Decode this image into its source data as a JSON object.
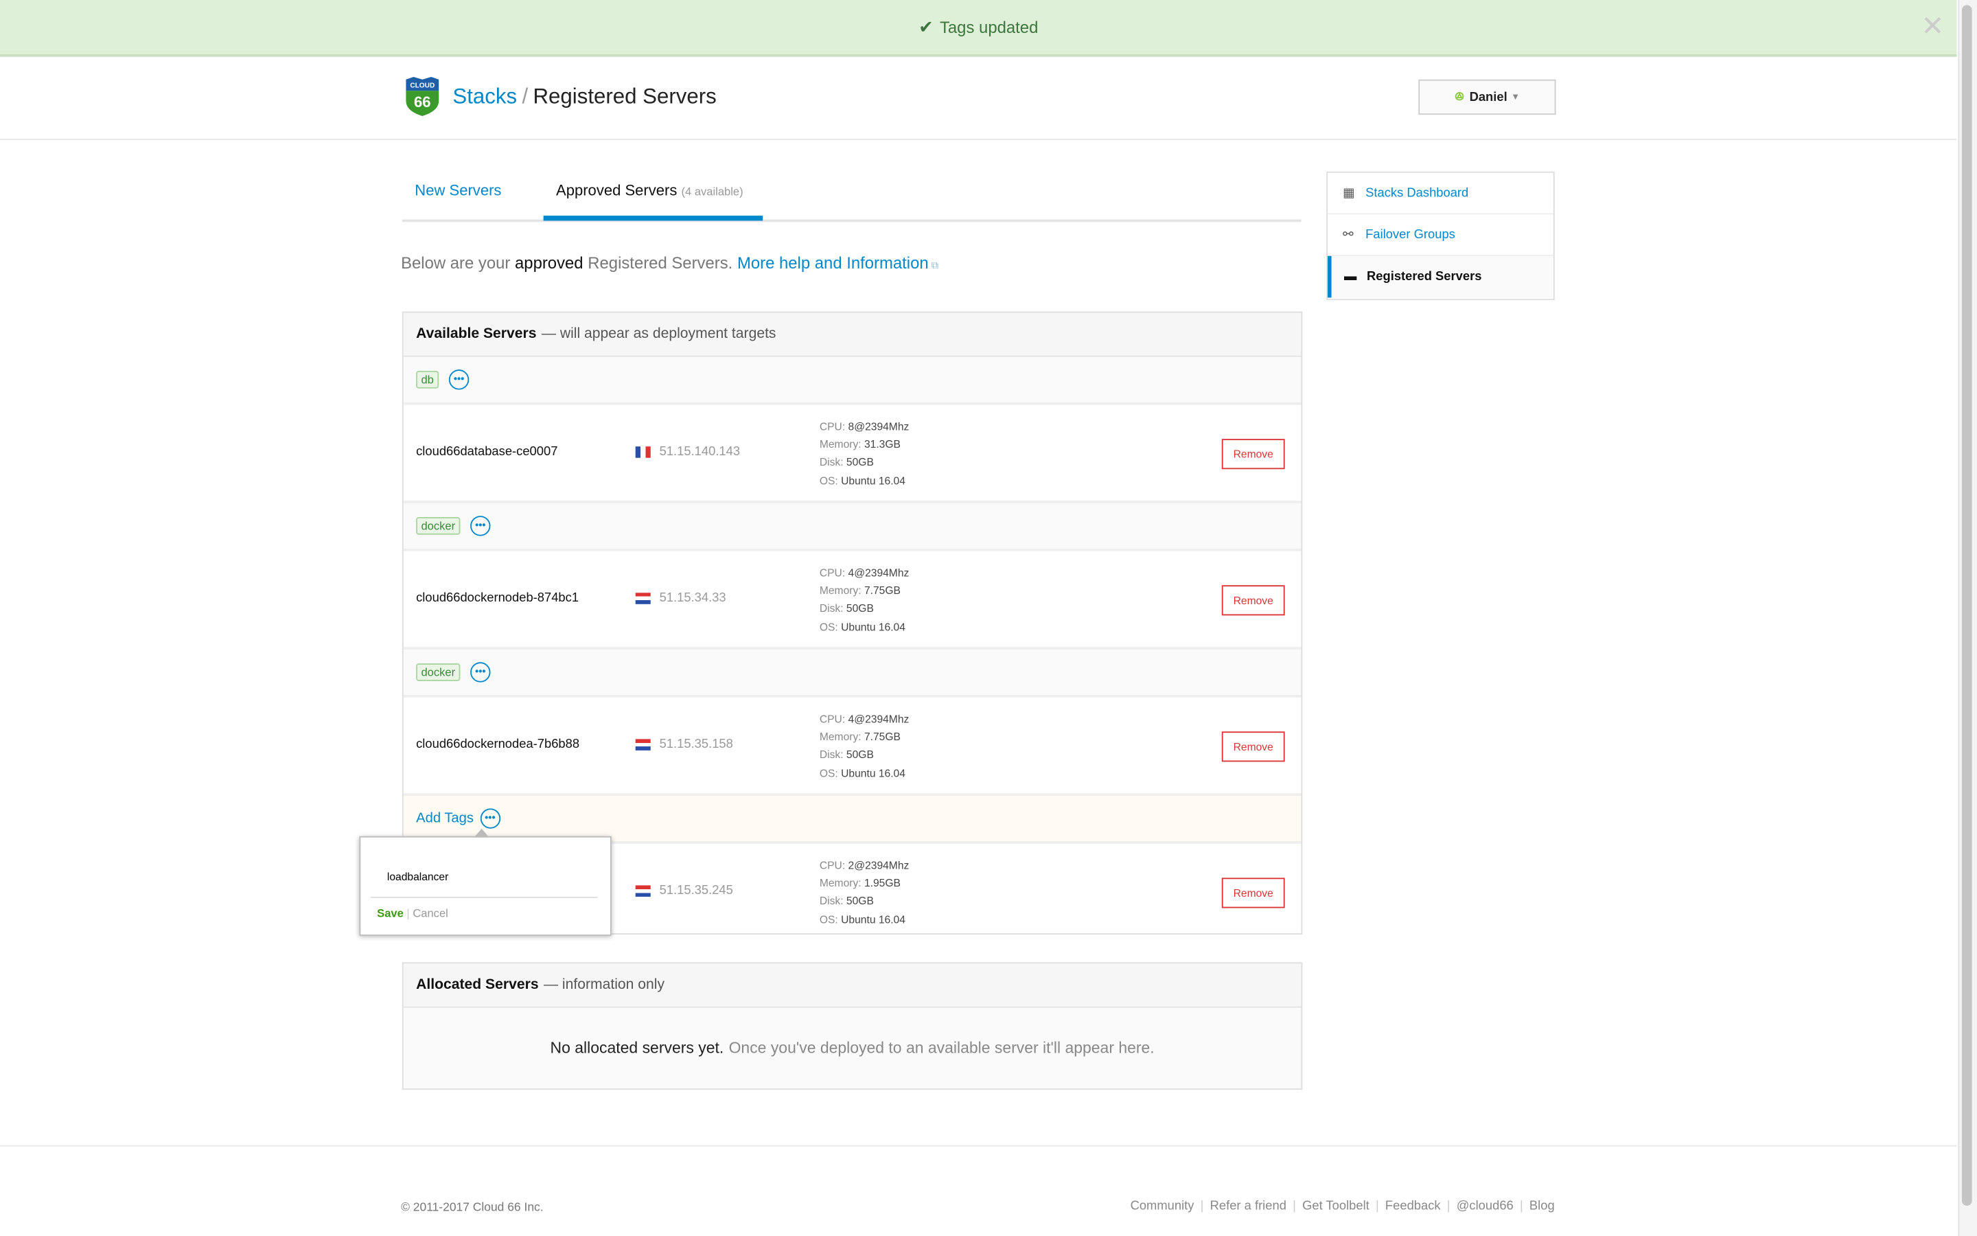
{
  "notification": {
    "message": "Tags updated",
    "icon": "check-icon",
    "color": "#dff0d8"
  },
  "header": {
    "logo_text": "CLOUD 66",
    "breadcrumb_link": "Stacks",
    "separator": "/",
    "title": "Registered Servers",
    "user": "Daniel"
  },
  "tabs": [
    {
      "label": "New Servers",
      "active": false
    },
    {
      "label": "Approved Servers",
      "badge": "(4 available)",
      "active": true
    }
  ],
  "intro": {
    "prefix": "Below are your",
    "bold": "approved",
    "suffix": "Registered Servers.",
    "link": "More help and Information"
  },
  "available": {
    "title": "Available Servers",
    "subtitle": "— will appear as deployment targets",
    "servers": [
      {
        "tags": [
          "db"
        ],
        "name": "cloud66database-ce0007",
        "flag": "france",
        "ip": "51.15.140.143",
        "cpu": "8@2394Mhz",
        "memory": "31.3GB",
        "disk": "50GB",
        "os": "Ubuntu 16.04",
        "remove": "Remove"
      },
      {
        "tags": [
          "docker"
        ],
        "name": "cloud66dockernodeb-874bc1",
        "flag": "netherlands",
        "ip": "51.15.34.33",
        "cpu": "4@2394Mhz",
        "memory": "7.75GB",
        "disk": "50GB",
        "os": "Ubuntu 16.04",
        "remove": "Remove"
      },
      {
        "tags": [
          "docker"
        ],
        "name": "cloud66dockernodea-7b6b88",
        "flag": "netherlands",
        "ip": "51.15.35.158",
        "cpu": "4@2394Mhz",
        "memory": "7.75GB",
        "disk": "50GB",
        "os": "Ubuntu 16.04",
        "remove": "Remove"
      },
      {
        "add_tags": "Add Tags",
        "flag": "netherlands",
        "ip": "51.15.35.245",
        "cpu": "2@2394Mhz",
        "memory": "1.95GB",
        "disk": "50GB",
        "os": "Ubuntu 16.04",
        "remove": "Remove"
      }
    ],
    "labels": {
      "cpu": "CPU:",
      "memory": "Memory:",
      "disk": "Disk:",
      "os": "OS:"
    }
  },
  "tag_popup": {
    "value": "loadbalancer",
    "save": "Save",
    "divider": "|",
    "cancel": "Cancel"
  },
  "allocated": {
    "title": "Allocated Servers",
    "subtitle": "— information only",
    "empty_bold": "No allocated servers yet.",
    "empty_text": "Once you've deployed to an available server it'll appear here."
  },
  "sidebar": {
    "items": [
      {
        "label": "Stacks Dashboard",
        "icon": "grid-icon"
      },
      {
        "label": "Failover Groups",
        "icon": "link-icon"
      },
      {
        "label": "Registered Servers",
        "icon": "server-icon",
        "active": true
      }
    ]
  },
  "footer": {
    "copyright": "© 2011-2017 Cloud 66 Inc.",
    "links": [
      "Community",
      "Refer a friend",
      "Get Toolbelt",
      "Feedback",
      "@cloud66",
      "Blog"
    ]
  },
  "colors": {
    "accent": "#0088cc",
    "danger": "#dd3333",
    "tag": "#3b8a3b",
    "save": "#3a9a10"
  }
}
